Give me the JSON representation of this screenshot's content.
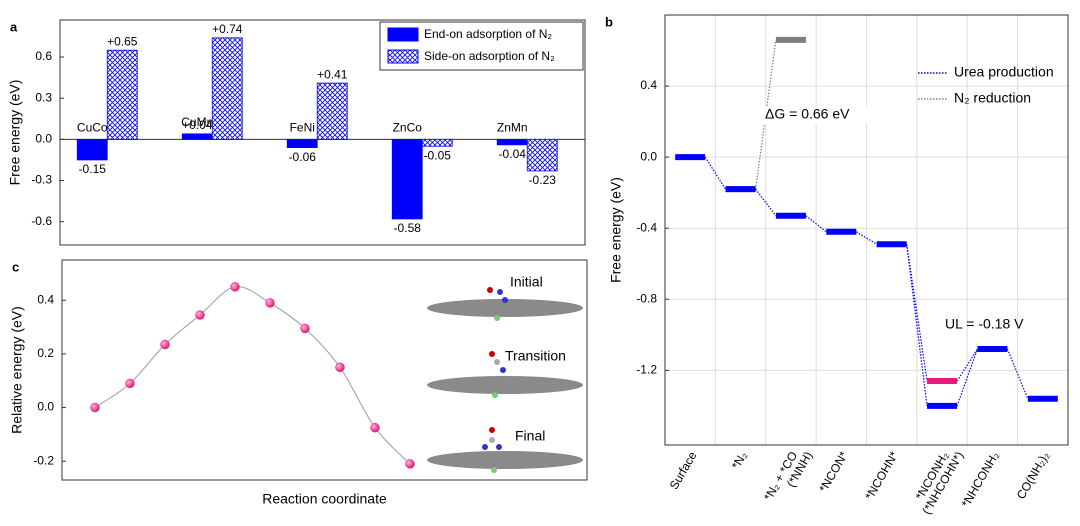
{
  "chart_data": [
    {
      "type": "bar",
      "label": "a",
      "ylabel": "Free energy (eV)",
      "categories": [
        "CuCo",
        "CuMn",
        "FeNi",
        "ZnCo",
        "ZnMn"
      ],
      "series": [
        {
          "name": "End-on adsorption of N₂",
          "color": "#0000ff",
          "label_color": "#000000",
          "values": [
            -0.15,
            0.04,
            -0.06,
            -0.58,
            -0.04
          ],
          "value_labels": [
            "-0.15",
            "+0.04",
            "-0.06",
            "-0.58",
            "-0.04"
          ]
        },
        {
          "name": "Side-on adsorption of N₂",
          "color": "#0000ff",
          "pattern": "crosshatch",
          "label_color": "#0000ff",
          "values": [
            0.65,
            0.74,
            0.41,
            -0.05,
            -0.23
          ],
          "value_labels": [
            "+0.65",
            "+0.74",
            "+0.41",
            "-0.05",
            "-0.23"
          ]
        }
      ],
      "ylim": [
        -0.77,
        0.87
      ],
      "yticks": [
        -0.6,
        -0.3,
        {
          "value": 0,
          "label": "0.0"
        },
        0.3,
        0.6
      ],
      "legend": "upper right"
    },
    {
      "type": "step",
      "label": "b",
      "ylabel": "Free energy (eV)",
      "categories": [
        "Surface",
        "*N₂",
        "*N₂ + *CO",
        "*NCON*",
        "*NCOHN*",
        "*NCONH₂",
        "*NHCONH₂",
        "CO(NH₂)₂"
      ],
      "alt_labels": [
        null,
        null,
        "(*NNH)",
        null,
        null,
        "(*NHCOHN*)",
        null,
        null
      ],
      "alt_values": [
        null,
        null,
        null,
        null,
        null,
        -1.26,
        null,
        null
      ],
      "alt_color": "#e8197a",
      "series": [
        {
          "name": "Urea production",
          "color": "#0000ff",
          "values": [
            0.0,
            -0.18,
            -0.33,
            -0.42,
            -0.49,
            -1.4,
            -1.08,
            -1.36
          ]
        },
        {
          "name": "N₂ reduction",
          "color": "#808080",
          "values": [
            null,
            -0.18,
            0.66,
            null,
            null,
            null,
            null,
            null
          ]
        }
      ],
      "annotations": [
        "ΔG = 0.66 eV",
        "UL = -0.18 V"
      ],
      "ylim": [
        -1.62,
        0.8
      ],
      "yticks": [
        -1.2,
        -0.8,
        -0.4,
        {
          "value": 0,
          "label": "0.0"
        },
        0.4
      ],
      "grid": true,
      "legend": "upper right"
    },
    {
      "type": "line",
      "label": "c",
      "ylabel": "Relative energy (eV)",
      "xlabel": "Reaction coordinate",
      "values": [
        0.0,
        0.09,
        0.235,
        0.345,
        0.45,
        0.39,
        0.295,
        0.15,
        -0.075,
        -0.21
      ],
      "color": "#f01f8c",
      "line_color": "#aaaaaa",
      "annotations": [
        "Initial",
        "Transition",
        "Final"
      ],
      "ylim": [
        -0.27,
        0.55
      ],
      "yticks": [
        -0.2,
        {
          "value": 0,
          "label": "0.0"
        },
        0.2,
        0.4
      ]
    }
  ]
}
